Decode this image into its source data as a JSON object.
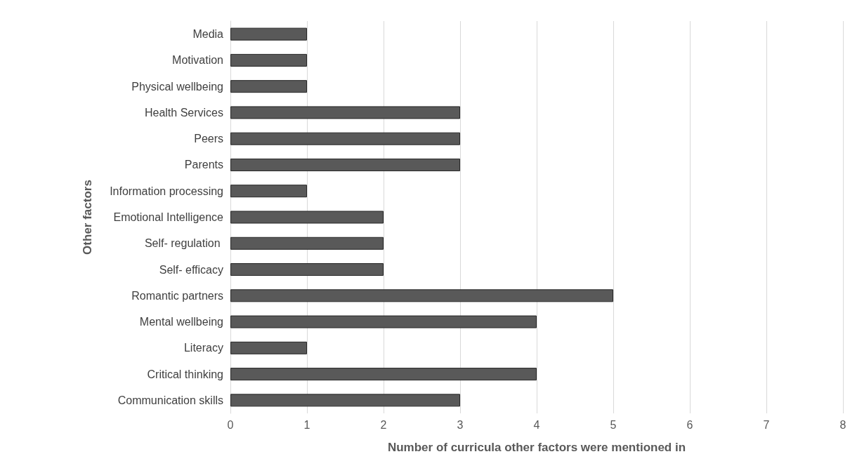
{
  "chart_data": {
    "type": "bar",
    "orientation": "horizontal",
    "categories": [
      "Media",
      "Motivation",
      "Physical wellbeing",
      "Health Services",
      "Peers",
      "Parents",
      "Information processing",
      "Emotional Intelligence",
      "Self- regulation ",
      "Self- efficacy",
      "Romantic partners",
      "Mental wellbeing",
      "Literacy",
      "Critical thinking",
      "Communication skills"
    ],
    "values": [
      1,
      1,
      1,
      3,
      3,
      3,
      1,
      2,
      2,
      2,
      5,
      4,
      1,
      4,
      3
    ],
    "color": "#595959",
    "xlabel": "Number of curricula other factors were mentioned in",
    "ylabel": "Other factors",
    "xlim": [
      0,
      8
    ],
    "xticks": [
      0,
      1,
      2,
      3,
      4,
      5,
      6,
      7,
      8
    ],
    "grid": "x"
  }
}
